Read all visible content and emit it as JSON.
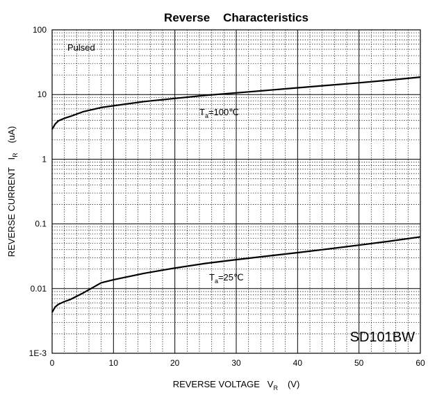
{
  "chart_data": {
    "type": "line",
    "title": "Reverse    Characteristics",
    "xlabel": {
      "main": "REVERSE VOLTAGE   V",
      "sub": "R",
      "unit": "(V)"
    },
    "ylabel": {
      "main": "REVERSE CURRENT   I",
      "sub": "R",
      "unit": "(uA)"
    },
    "xlim": [
      0,
      60
    ],
    "ylim": [
      0.001,
      100
    ],
    "yscale": "log",
    "grid": true,
    "x_ticks": [
      0,
      10,
      20,
      30,
      40,
      50,
      60
    ],
    "x_tick_labels": [
      "0",
      "10",
      "20",
      "30",
      "40",
      "50",
      "60"
    ],
    "y_ticks": [
      0.001,
      0.01,
      0.1,
      1,
      10,
      100
    ],
    "y_tick_labels": [
      "1E-3",
      "0.01",
      "0.1",
      "1",
      "10",
      "100"
    ],
    "annotations": [
      {
        "id": "pulsed",
        "text": "Pulsed"
      },
      {
        "id": "model",
        "text": "SD101BW"
      }
    ],
    "series": [
      {
        "label_main": "T",
        "label_sub": "a",
        "label_rest": "=100℃",
        "x": [
          0,
          0.5,
          1,
          2,
          3,
          5,
          8,
          10,
          15,
          20,
          25,
          30,
          35,
          40,
          45,
          50,
          55,
          60
        ],
        "y": [
          2.9,
          3.5,
          3.9,
          4.3,
          4.6,
          5.4,
          6.3,
          6.7,
          7.8,
          8.7,
          9.7,
          10.6,
          11.6,
          12.7,
          13.9,
          15.2,
          16.7,
          18.6
        ]
      },
      {
        "label_main": "T",
        "label_sub": "a",
        "label_rest": "=25℃",
        "x": [
          0,
          0.5,
          1,
          2,
          3,
          5,
          8,
          10,
          15,
          20,
          25,
          30,
          35,
          40,
          45,
          50,
          55,
          60
        ],
        "y": [
          0.0043,
          0.0052,
          0.0057,
          0.0063,
          0.0068,
          0.0085,
          0.0123,
          0.0137,
          0.0172,
          0.0208,
          0.0245,
          0.028,
          0.0318,
          0.036,
          0.041,
          0.047,
          0.054,
          0.063
        ]
      }
    ]
  }
}
